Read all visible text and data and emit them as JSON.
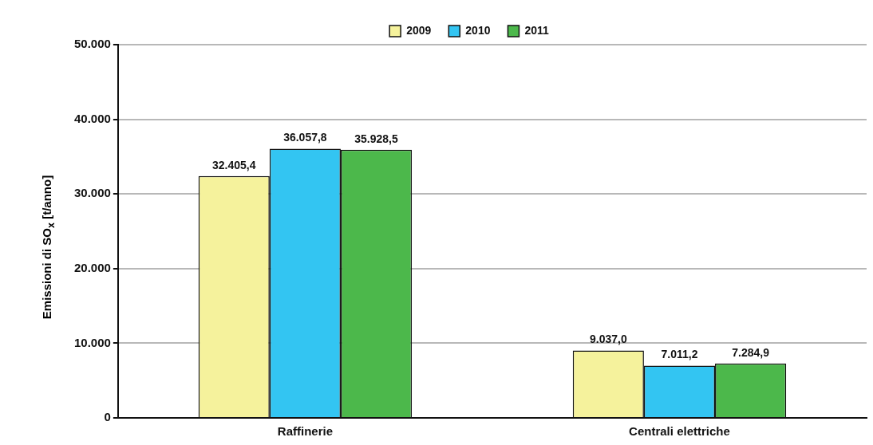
{
  "chart_data": {
    "type": "bar",
    "ylabel": "Emissioni di SO$_{x}$ [t/anno]",
    "categories": [
      "Raffinerie",
      "Centrali elettriche"
    ],
    "series": [
      {
        "name": "2009",
        "color": "#f5f29c",
        "values": [
          32405.4,
          9037.0
        ],
        "value_labels": [
          "32.405,4",
          "9.037,0"
        ]
      },
      {
        "name": "2010",
        "color": "#33c5f2",
        "values": [
          36057.8,
          7011.2
        ],
        "value_labels": [
          "36.057,8",
          "7.011,2"
        ]
      },
      {
        "name": "2011",
        "color": "#4cb84b",
        "values": [
          35928.5,
          7284.9
        ],
        "value_labels": [
          "35.928,5",
          "7.284,9"
        ]
      }
    ],
    "ylim": [
      0,
      50000
    ],
    "yticks": [
      {
        "value": 0,
        "label": "0"
      },
      {
        "value": 10000,
        "label": "10.000"
      },
      {
        "value": 20000,
        "label": "20.000"
      },
      {
        "value": 30000,
        "label": "30.000"
      },
      {
        "value": 40000,
        "label": "40.000"
      },
      {
        "value": 50000,
        "label": "50.000"
      }
    ],
    "grid": "y",
    "legend": "top"
  }
}
